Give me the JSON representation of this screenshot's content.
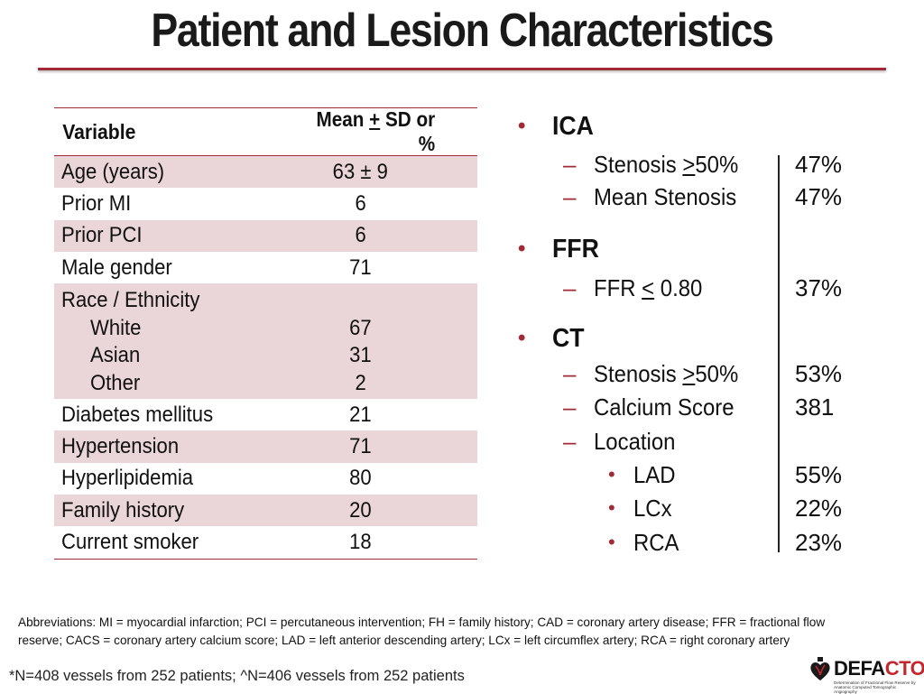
{
  "title": "Patient and Lesion Characteristics",
  "table": {
    "header": {
      "variable": "Variable",
      "value_prefix": "Mean ",
      "value_underlined": "+",
      "value_suffix": " SD or %"
    },
    "rows": [
      {
        "label": "Age (years)",
        "value": "63 ± 9"
      },
      {
        "label": "Prior MI",
        "value": "6"
      },
      {
        "label": "Prior PCI",
        "value": "6"
      },
      {
        "label": "Male gender",
        "value": "71"
      }
    ],
    "race": {
      "label": "Race / Ethnicity",
      "items": [
        {
          "label": "White",
          "value": "67"
        },
        {
          "label": "Asian",
          "value": "31"
        },
        {
          "label": "Other",
          "value": "2"
        }
      ]
    },
    "rows2": [
      {
        "label": "Diabetes mellitus",
        "value": "21"
      },
      {
        "label": "Hypertension",
        "value": "71"
      },
      {
        "label": "Hyperlipidemia",
        "value": "80"
      },
      {
        "label": "Family history",
        "value": "20"
      },
      {
        "label": "Current smoker",
        "value": "18"
      }
    ]
  },
  "summary": {
    "ica": {
      "heading": "ICA",
      "items": [
        {
          "pre": "Stenosis ",
          "u": ">",
          "post": "50%",
          "value": "47%"
        },
        {
          "pre": "Mean Stenosis",
          "u": "",
          "post": "",
          "value": "47%"
        }
      ]
    },
    "ffr": {
      "heading": "FFR",
      "items": [
        {
          "pre": "FFR ",
          "u": "<",
          "post": " 0.80",
          "value": "37%"
        }
      ]
    },
    "ct": {
      "heading": "CT",
      "items": [
        {
          "pre": "Stenosis ",
          "u": ">",
          "post": "50%",
          "value": "53%"
        },
        {
          "pre": "Calcium Score",
          "u": "",
          "post": "",
          "value": "381"
        },
        {
          "pre": "Location",
          "u": "",
          "post": "",
          "value": ""
        }
      ],
      "locations": [
        {
          "label": "LAD",
          "value": "55%"
        },
        {
          "label": "LCx",
          "value": "22%"
        },
        {
          "label": "RCA",
          "value": "23%"
        }
      ]
    }
  },
  "abbreviations": "Abbreviations: MI = myocardial infarction; PCI = percutaneous intervention; FH = family history; CAD = coronary artery disease; FFR = fractional flow reserve; CACS = coronary artery calcium score; LAD = left anterior descending artery; LCx = left circumflex artery; RCA = right coronary artery",
  "footnote": "*N=408 vessels from 252 patients; ^N=406 vessels from 252 patients",
  "logo": {
    "word_a": "DEFA",
    "word_b": "CTO",
    "tagline": "Determination of Fractional Flow Reserve by Anatomic Computed Tomographic Angiography",
    "icon": "heart-vessel-icon"
  },
  "colors": {
    "accent": "#a02a36",
    "row_fill": "#ead6d8",
    "logo_red": "#c2282e"
  }
}
